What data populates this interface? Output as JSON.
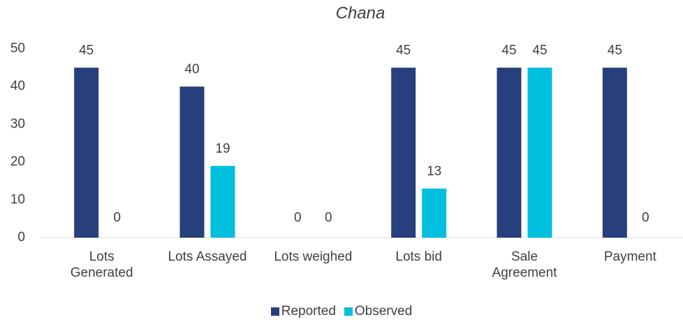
{
  "chart_data": {
    "type": "bar",
    "title": "Chana",
    "categories": [
      "Lots Generated",
      "Lots Assayed",
      "Lots weighed",
      "Lots bid",
      "Sale Agreement",
      "Payment"
    ],
    "series": [
      {
        "name": "Reported",
        "color": "#283f7e",
        "values": [
          45,
          40,
          0,
          45,
          45,
          45
        ]
      },
      {
        "name": "Observed",
        "color": "#00bfdf",
        "values": [
          0,
          19,
          0,
          13,
          45,
          0
        ]
      }
    ],
    "ylim": [
      0,
      50
    ],
    "yticks": [
      0,
      10,
      20,
      30,
      40,
      50
    ],
    "grid": false,
    "legend": "bottom"
  }
}
